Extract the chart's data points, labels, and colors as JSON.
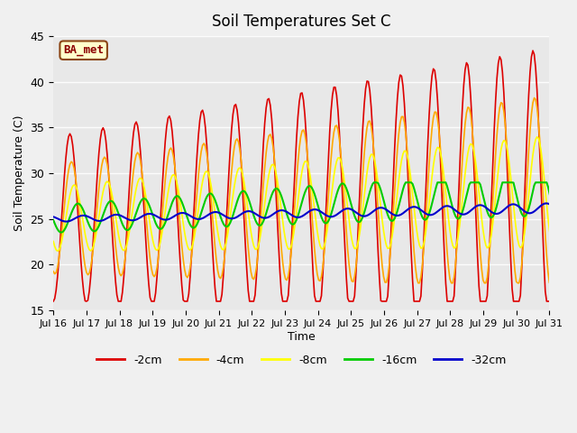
{
  "title": "Soil Temperatures Set C",
  "xlabel": "Time",
  "ylabel": "Soil Temperature (C)",
  "ylim": [
    15,
    45
  ],
  "background_color": "#e8e8e8",
  "plot_bg_color": "#e8e8e8",
  "legend_label": "BA_met",
  "series_colors": {
    "-2cm": "#dd0000",
    "-4cm": "#ffaa00",
    "-8cm": "#ffff00",
    "-16cm": "#00cc00",
    "-32cm": "#0000cc"
  },
  "xtick_labels": [
    "Jul 16",
    "Jul 17",
    "Jul 18",
    "Jul 19",
    "Jul 20",
    "Jul 21",
    "Jul 22",
    "Jul 23",
    "Jul 24",
    "Jul 25",
    "Jul 26",
    "Jul 27",
    "Jul 28",
    "Jul 29",
    "Jul 30",
    "Jul 31"
  ],
  "ytick_values": [
    15,
    20,
    25,
    30,
    35,
    40,
    45
  ],
  "n_days": 16,
  "hours_per_day": 24
}
